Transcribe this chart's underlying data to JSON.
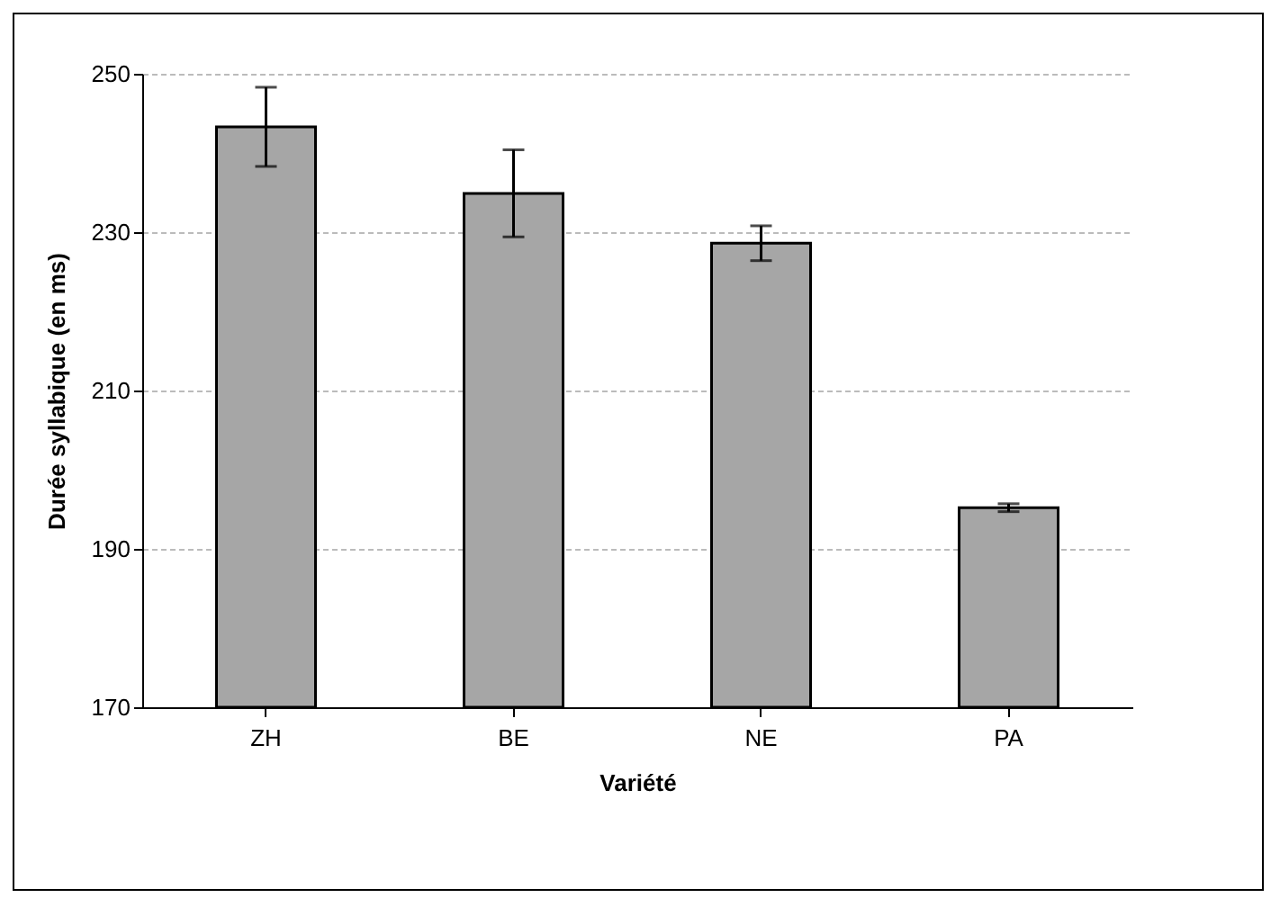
{
  "chart_data": {
    "type": "bar",
    "xlabel": "Variété",
    "ylabel": "Durée syllabique (en ms)",
    "categories": [
      "ZH",
      "BE",
      "NE",
      "PA"
    ],
    "values": [
      243.3,
      234.9,
      228.6,
      195.2
    ],
    "errors": [
      5,
      5.5,
      2.2,
      0.5
    ],
    "color": "#a6a6a6",
    "ylim": [
      170,
      250
    ],
    "yticks": [
      170,
      190,
      210,
      230,
      250
    ],
    "grid": "y"
  }
}
